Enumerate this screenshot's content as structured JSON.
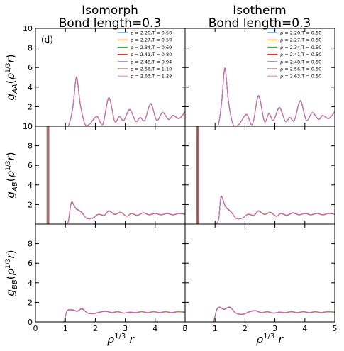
{
  "panel_label": "(d)",
  "columns": [
    {
      "title_line1": "Isomorph",
      "title_line2": "Bond length=0.3"
    },
    {
      "title_line1": "Isotherm",
      "title_line2": "Bond length=0.3"
    }
  ],
  "xlabel": "ρ¹ᐟ³ r",
  "series_colors": [
    "#1f77b4",
    "#ff7f0e",
    "#2ca02c",
    "#d62728",
    "#9467bd",
    "#8c564b",
    "#e377c2"
  ],
  "chart_data": [
    {
      "type": "line",
      "panel": "isomorph-gAA",
      "ylabel": "g_AA(ρ^1/3 r)",
      "xlim": [
        0,
        5
      ],
      "ylim": [
        0,
        10
      ],
      "xticks": [
        0,
        1,
        2,
        3,
        4,
        5
      ],
      "yticks": [
        2,
        4,
        6,
        8,
        10
      ],
      "legend_position": "top-right",
      "series": [
        {
          "name": "ρ = 2.20,T = 0.50"
        },
        {
          "name": "ρ = 2.27,T = 0.59"
        },
        {
          "name": "ρ = 2.34,T = 0.69"
        },
        {
          "name": "ρ = 2.41,T = 0.80"
        },
        {
          "name": "ρ = 2.48,T = 0.94"
        },
        {
          "name": "ρ = 2.56,T = 1.10"
        },
        {
          "name": "ρ = 2.63,T = 1.28"
        }
      ],
      "curve": [
        [
          0.9,
          0
        ],
        [
          1.1,
          0.05
        ],
        [
          1.25,
          2.0
        ],
        [
          1.37,
          5.0
        ],
        [
          1.5,
          2.2
        ],
        [
          1.65,
          0.25
        ],
        [
          1.8,
          0.2
        ],
        [
          2.05,
          1.0
        ],
        [
          2.25,
          0.2
        ],
        [
          2.45,
          2.9
        ],
        [
          2.65,
          0.5
        ],
        [
          2.8,
          1.0
        ],
        [
          2.95,
          0.6
        ],
        [
          3.15,
          1.7
        ],
        [
          3.35,
          0.5
        ],
        [
          3.5,
          0.9
        ],
        [
          3.65,
          0.6
        ],
        [
          3.85,
          2.3
        ],
        [
          4.05,
          0.6
        ],
        [
          4.25,
          1.4
        ],
        [
          4.45,
          0.7
        ],
        [
          4.6,
          1.1
        ],
        [
          4.8,
          0.8
        ],
        [
          5.0,
          1.5
        ]
      ]
    },
    {
      "type": "line",
      "panel": "isotherm-gAA",
      "ylabel": "",
      "xlim": [
        0,
        5
      ],
      "ylim": [
        0,
        10
      ],
      "xticks": [
        0,
        1,
        2,
        3,
        4,
        5
      ],
      "yticks": [
        2,
        4,
        6,
        8,
        10
      ],
      "legend_position": "top-right",
      "series": [
        {
          "name": "ρ = 2.20,T = 0.50"
        },
        {
          "name": "ρ = 2.27,T = 0.50"
        },
        {
          "name": "ρ = 2.34,T = 0.50"
        },
        {
          "name": "ρ = 2.41,T = 0.50"
        },
        {
          "name": "ρ = 2.48,T = 0.50"
        },
        {
          "name": "ρ = 2.56,T = 0.50"
        },
        {
          "name": "ρ = 2.63,T = 0.50"
        }
      ],
      "curve": [
        [
          0.9,
          0
        ],
        [
          1.1,
          0.05
        ],
        [
          1.22,
          2.5
        ],
        [
          1.33,
          5.9
        ],
        [
          1.45,
          2.5
        ],
        [
          1.6,
          0.2
        ],
        [
          1.8,
          0.2
        ],
        [
          2.05,
          1.2
        ],
        [
          2.25,
          0.2
        ],
        [
          2.45,
          3.1
        ],
        [
          2.65,
          0.5
        ],
        [
          2.8,
          1.3
        ],
        [
          2.95,
          0.6
        ],
        [
          3.15,
          1.9
        ],
        [
          3.35,
          0.5
        ],
        [
          3.5,
          0.9
        ],
        [
          3.65,
          0.6
        ],
        [
          3.85,
          2.6
        ],
        [
          4.05,
          0.6
        ],
        [
          4.25,
          1.4
        ],
        [
          4.45,
          0.7
        ],
        [
          4.6,
          1.1
        ],
        [
          4.8,
          0.8
        ],
        [
          5.0,
          1.5
        ]
      ]
    },
    {
      "type": "line",
      "panel": "isomorph-gAB",
      "ylabel": "g_AB(ρ^1/3 r)",
      "xlim": [
        0,
        5
      ],
      "ylim": [
        0,
        10
      ],
      "xticks": [
        0,
        1,
        2,
        3,
        4,
        5
      ],
      "yticks": [
        2,
        4,
        6,
        8,
        10
      ],
      "spike_x": 0.42,
      "curve": [
        [
          0.8,
          0
        ],
        [
          1.0,
          0
        ],
        [
          1.1,
          0.3
        ],
        [
          1.2,
          2.2
        ],
        [
          1.35,
          1.6
        ],
        [
          1.55,
          1.2
        ],
        [
          1.7,
          0.6
        ],
        [
          1.9,
          0.6
        ],
        [
          2.1,
          1.0
        ],
        [
          2.3,
          0.9
        ],
        [
          2.45,
          1.35
        ],
        [
          2.65,
          1.0
        ],
        [
          2.85,
          1.2
        ],
        [
          3.05,
          0.8
        ],
        [
          3.2,
          1.1
        ],
        [
          3.4,
          0.9
        ],
        [
          3.6,
          1.15
        ],
        [
          3.8,
          0.95
        ],
        [
          4.0,
          1.1
        ],
        [
          4.2,
          0.95
        ],
        [
          4.4,
          1.1
        ],
        [
          4.6,
          0.95
        ],
        [
          4.8,
          1.1
        ],
        [
          5.0,
          1.0
        ]
      ]
    },
    {
      "type": "line",
      "panel": "isotherm-gAB",
      "ylabel": "",
      "xlim": [
        0,
        5
      ],
      "ylim": [
        0,
        10
      ],
      "xticks": [
        0,
        1,
        2,
        3,
        4,
        5
      ],
      "yticks": [
        2,
        4,
        6,
        8,
        10
      ],
      "spike_x": 0.42,
      "curve": [
        [
          0.8,
          0
        ],
        [
          1.0,
          0
        ],
        [
          1.12,
          0.5
        ],
        [
          1.2,
          2.8
        ],
        [
          1.35,
          1.8
        ],
        [
          1.55,
          1.2
        ],
        [
          1.7,
          0.6
        ],
        [
          1.9,
          0.6
        ],
        [
          2.1,
          1.0
        ],
        [
          2.3,
          0.9
        ],
        [
          2.45,
          1.35
        ],
        [
          2.65,
          1.0
        ],
        [
          2.85,
          1.2
        ],
        [
          3.05,
          0.8
        ],
        [
          3.2,
          1.1
        ],
        [
          3.4,
          0.9
        ],
        [
          3.6,
          1.15
        ],
        [
          3.8,
          0.95
        ],
        [
          4.0,
          1.1
        ],
        [
          4.2,
          0.95
        ],
        [
          4.4,
          1.1
        ],
        [
          4.6,
          0.95
        ],
        [
          4.8,
          1.1
        ],
        [
          5.0,
          1.0
        ]
      ]
    },
    {
      "type": "line",
      "panel": "isomorph-gBB",
      "ylabel": "g_BB(ρ^1/3 r)",
      "xlim": [
        0,
        5
      ],
      "ylim": [
        0,
        10
      ],
      "xticks": [
        0,
        1,
        2,
        3,
        4,
        5
      ],
      "yticks": [
        0,
        2,
        4,
        6,
        8
      ],
      "curve": [
        [
          0.8,
          0
        ],
        [
          0.95,
          0.05
        ],
        [
          1.05,
          1.1
        ],
        [
          1.2,
          1.25
        ],
        [
          1.4,
          1.1
        ],
        [
          1.55,
          1.35
        ],
        [
          1.75,
          0.9
        ],
        [
          1.95,
          0.85
        ],
        [
          2.15,
          1.0
        ],
        [
          2.35,
          1.1
        ],
        [
          2.55,
          0.95
        ],
        [
          2.75,
          1.05
        ],
        [
          2.95,
          0.9
        ],
        [
          3.15,
          1.0
        ],
        [
          3.35,
          0.95
        ],
        [
          3.55,
          1.05
        ],
        [
          3.75,
          0.95
        ],
        [
          3.95,
          1.05
        ],
        [
          4.15,
          0.95
        ],
        [
          4.35,
          1.05
        ],
        [
          4.55,
          0.95
        ],
        [
          4.75,
          1.05
        ],
        [
          5.0,
          1.0
        ]
      ]
    },
    {
      "type": "line",
      "panel": "isotherm-gBB",
      "ylabel": "",
      "xlim": [
        0,
        5
      ],
      "ylim": [
        0,
        10
      ],
      "xticks": [
        0,
        1,
        2,
        3,
        4,
        5
      ],
      "yticks": [
        0,
        2,
        4,
        6,
        8
      ],
      "curve": [
        [
          0.8,
          0
        ],
        [
          0.95,
          0.05
        ],
        [
          1.05,
          1.2
        ],
        [
          1.15,
          1.5
        ],
        [
          1.3,
          1.3
        ],
        [
          1.5,
          1.5
        ],
        [
          1.7,
          0.9
        ],
        [
          1.95,
          0.8
        ],
        [
          2.15,
          1.05
        ],
        [
          2.35,
          1.15
        ],
        [
          2.55,
          0.95
        ],
        [
          2.75,
          1.05
        ],
        [
          2.95,
          0.9
        ],
        [
          3.15,
          1.0
        ],
        [
          3.35,
          0.95
        ],
        [
          3.55,
          1.05
        ],
        [
          3.75,
          0.95
        ],
        [
          3.95,
          1.05
        ],
        [
          4.15,
          0.95
        ],
        [
          4.35,
          1.05
        ],
        [
          4.55,
          0.95
        ],
        [
          4.75,
          1.05
        ],
        [
          5.0,
          1.0
        ]
      ]
    }
  ]
}
